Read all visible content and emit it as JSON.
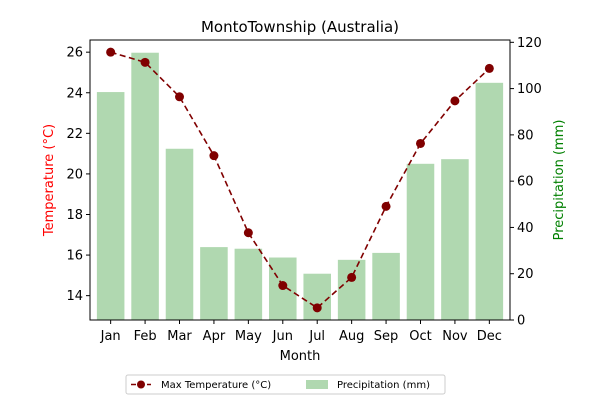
{
  "chart_data": {
    "type": "bar+line",
    "title": "MontoTownship (Australia)",
    "xlabel": "Month",
    "categories": [
      "Jan",
      "Feb",
      "Mar",
      "Apr",
      "May",
      "Jun",
      "Jul",
      "Aug",
      "Sep",
      "Oct",
      "Nov",
      "Dec"
    ],
    "y_left": {
      "label": "Temperature (°C)",
      "color": "#ff0000",
      "ylim": [
        12.8,
        26.6
      ],
      "ticks": [
        14,
        16,
        18,
        20,
        22,
        24,
        26
      ]
    },
    "y_right": {
      "label": "Precipitation (mm)",
      "color": "#008000",
      "ylim": [
        0,
        121
      ],
      "ticks": [
        0,
        20,
        40,
        60,
        80,
        100,
        120
      ]
    },
    "series": [
      {
        "name": "Max Temperature (°C)",
        "kind": "line",
        "axis": "left",
        "color": "#800000",
        "line_style": "dashed",
        "marker": "circle",
        "values": [
          26.0,
          25.5,
          23.8,
          20.9,
          17.1,
          14.5,
          13.4,
          14.9,
          18.4,
          21.5,
          23.6,
          25.2
        ]
      },
      {
        "name": "Precipitation (mm)",
        "kind": "bar",
        "axis": "right",
        "color": "#b0d8b0",
        "values": [
          98.5,
          115.5,
          74.0,
          31.5,
          30.8,
          27.0,
          20.0,
          26.0,
          29.0,
          67.5,
          69.5,
          102.5
        ]
      }
    ],
    "legend": {
      "placement": "bottom-center",
      "columns": 2
    }
  }
}
